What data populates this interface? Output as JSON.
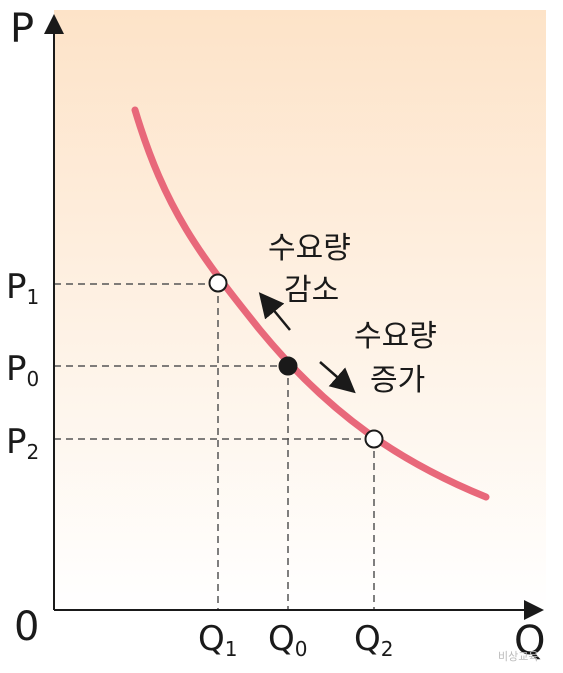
{
  "axes": {
    "y_label": "P",
    "x_label": "Q",
    "origin_label": "0"
  },
  "price_ticks": [
    {
      "main": "P",
      "sub": "1"
    },
    {
      "main": "P",
      "sub": "0"
    },
    {
      "main": "P",
      "sub": "2"
    }
  ],
  "quantity_ticks": [
    {
      "main": "Q",
      "sub": "1"
    },
    {
      "main": "Q",
      "sub": "0"
    },
    {
      "main": "Q",
      "sub": "2"
    }
  ],
  "annotations": {
    "decrease": [
      "수요량",
      "감소"
    ],
    "increase": [
      "수요량",
      "증가"
    ]
  },
  "watermark": "비상교육",
  "colors": {
    "curve": "#e8687a",
    "background_top": "#fde3c8",
    "background_bottom": "#ffffff",
    "axis": "#1a1a1a",
    "guide": "#555555"
  }
}
